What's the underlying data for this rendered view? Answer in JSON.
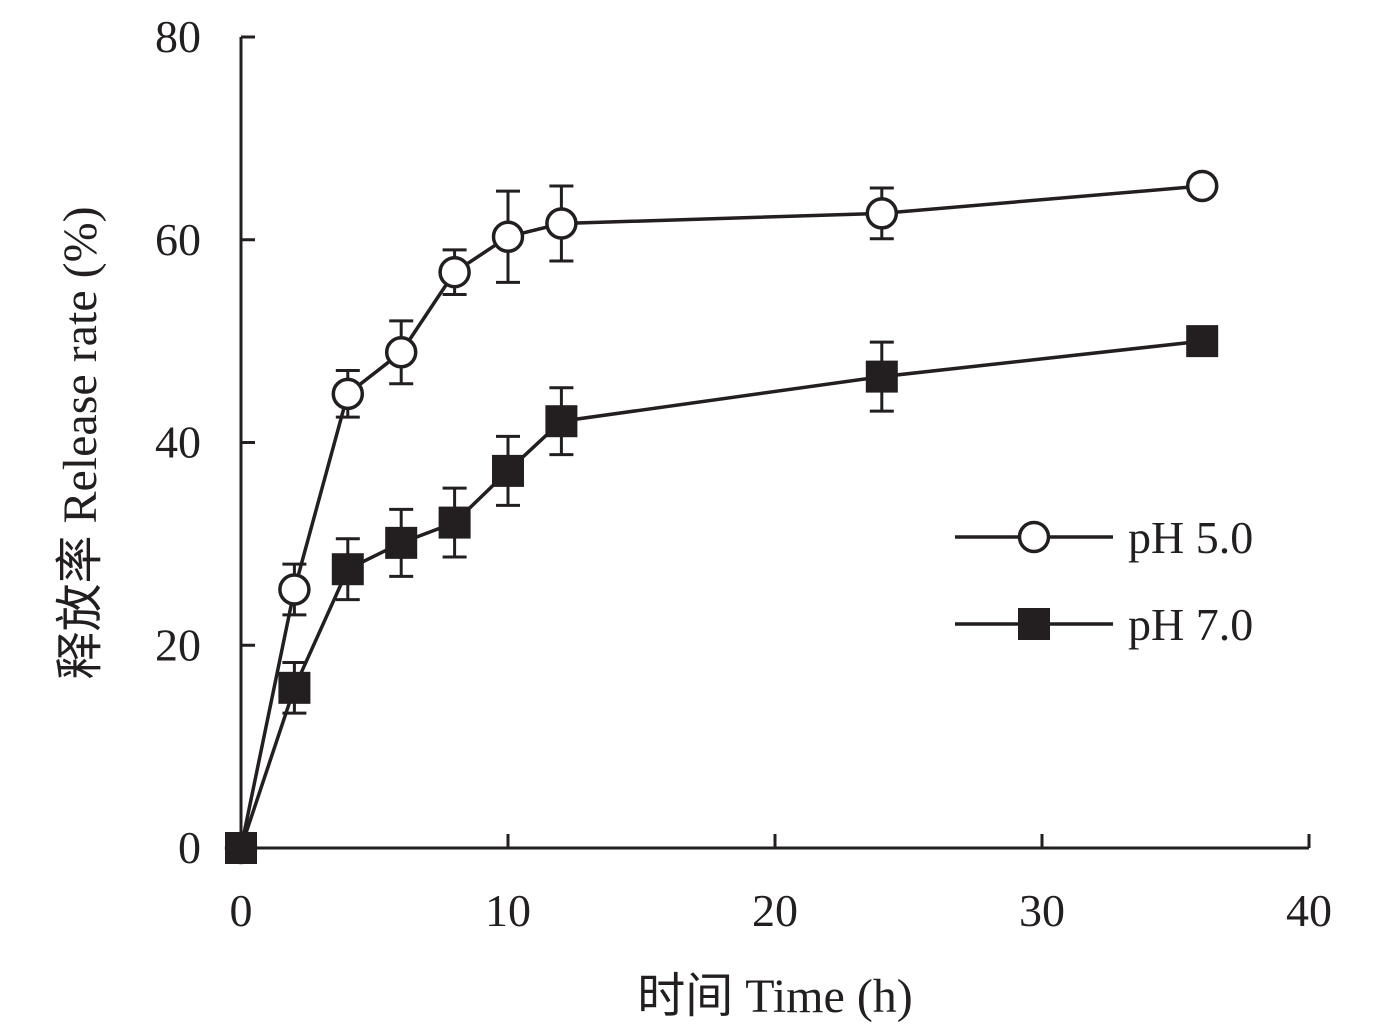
{
  "chart_data": {
    "type": "line",
    "xlabel": "时间 Time (h)",
    "ylabel": "释放率 Release rate (%)",
    "xlim": [
      0,
      40
    ],
    "ylim": [
      0,
      80
    ],
    "xticks": [
      "0",
      "10",
      "20",
      "30",
      "40"
    ],
    "yticks": [
      "0",
      "20",
      "40",
      "60",
      "80"
    ],
    "grid": false,
    "legend_position": "right",
    "series": [
      {
        "name": "pH 5.0",
        "marker": "open-circle",
        "x": [
          0,
          2,
          4,
          6,
          8,
          10,
          12,
          24,
          36
        ],
        "y": [
          0,
          25.5,
          44.8,
          48.9,
          56.8,
          60.3,
          61.6,
          62.6,
          65.3
        ],
        "err": [
          0,
          2.5,
          2.3,
          3.1,
          2.2,
          4.5,
          3.7,
          2.5,
          0
        ]
      },
      {
        "name": "pH 7.0",
        "marker": "filled-square",
        "x": [
          0,
          2,
          4,
          6,
          8,
          10,
          12,
          24,
          36
        ],
        "y": [
          0,
          15.8,
          27.5,
          30.1,
          32.1,
          37.2,
          42.1,
          46.5,
          50.0
        ],
        "err": [
          0,
          2.5,
          3.0,
          3.3,
          3.4,
          3.4,
          3.3,
          3.4,
          0
        ]
      }
    ]
  }
}
